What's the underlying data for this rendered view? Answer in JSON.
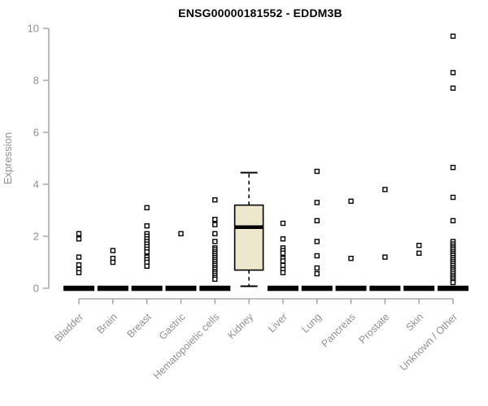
{
  "chart_data": {
    "type": "boxplot",
    "title": "ENSG00000181552 - EDDM3B",
    "ylabel": "Expression",
    "xlabel": "",
    "ylim": [
      0,
      10
    ],
    "yticks": [
      0,
      2,
      4,
      6,
      8,
      10
    ],
    "grid": false,
    "legend": false,
    "point_style": "open-square",
    "colors": {
      "box_fill": "#EDE8CD",
      "box_border": "#000000",
      "axis": "#999999",
      "tick_label": "#909090",
      "title": "#000000",
      "point": "#000000",
      "zero_bar": "#000000"
    },
    "categories": [
      "Bladder",
      "Brain",
      "Breast",
      "Gastric",
      "Hematopoietic cells",
      "Kidney",
      "Liver",
      "Lung",
      "Pancreas",
      "Prostate",
      "Skin",
      "Unknown / Other"
    ],
    "groups": [
      {
        "name": "Bladder",
        "zero_bar": true,
        "points": [
          2.1,
          1.9,
          1.2,
          0.9,
          0.73,
          0.6
        ]
      },
      {
        "name": "Brain",
        "zero_bar": true,
        "points": [
          1.45,
          1.15,
          1.0
        ]
      },
      {
        "name": "Breast",
        "zero_bar": true,
        "points": [
          3.1,
          2.4,
          2.1,
          2.0,
          1.9,
          1.8,
          1.7,
          1.6,
          1.5,
          1.4,
          1.2,
          1.1,
          1.0,
          0.85
        ]
      },
      {
        "name": "Gastric",
        "zero_bar": true,
        "points": [
          2.1
        ]
      },
      {
        "name": "Hematopoietic cells",
        "zero_bar": true,
        "points": [
          3.4,
          2.65,
          2.45,
          2.1,
          1.8,
          1.55,
          1.48,
          1.4,
          1.33,
          1.25,
          1.18,
          1.1,
          1.03,
          0.95,
          0.88,
          0.8,
          0.73,
          0.65,
          0.58,
          0.5,
          0.42,
          0.35
        ]
      },
      {
        "name": "Kidney",
        "zero_bar": false,
        "points": [],
        "box": {
          "whisker_low": 0.08,
          "q1": 0.7,
          "median": 2.35,
          "q3": 3.2,
          "whisker_high": 4.45
        }
      },
      {
        "name": "Liver",
        "zero_bar": true,
        "points": [
          2.5,
          1.9,
          1.55,
          1.45,
          1.35,
          1.15,
          1.05,
          0.88,
          0.72,
          0.6
        ]
      },
      {
        "name": "Lung",
        "zero_bar": true,
        "points": [
          4.5,
          3.3,
          2.6,
          1.8,
          1.25,
          0.78,
          0.56
        ]
      },
      {
        "name": "Pancreas",
        "zero_bar": true,
        "points": [
          3.35,
          1.15
        ]
      },
      {
        "name": "Prostate",
        "zero_bar": true,
        "points": [
          3.8,
          1.2
        ]
      },
      {
        "name": "Skin",
        "zero_bar": true,
        "points": [
          1.65,
          1.35
        ]
      },
      {
        "name": "Unknown / Other",
        "zero_bar": true,
        "points": [
          9.7,
          8.3,
          7.7,
          4.65,
          3.5,
          2.6,
          1.8,
          1.7,
          1.62,
          1.55,
          1.48,
          1.4,
          1.33,
          1.26,
          1.18,
          1.1,
          1.03,
          0.96,
          0.88,
          0.8,
          0.73,
          0.66,
          0.58,
          0.5,
          0.43,
          0.36,
          0.28,
          0.22
        ]
      }
    ]
  }
}
